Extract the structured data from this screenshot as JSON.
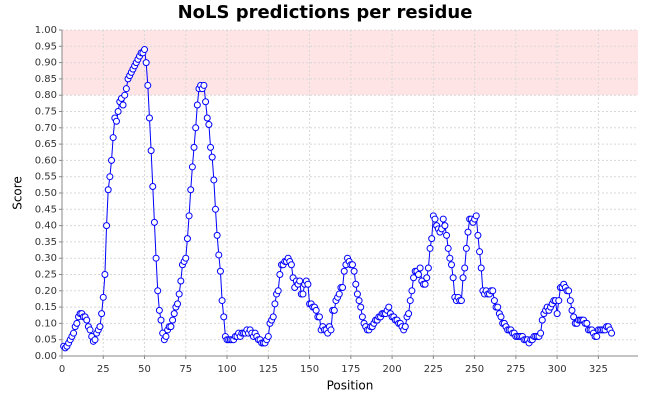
{
  "chart_data": {
    "type": "line",
    "title": "NoLS predictions per residue",
    "x_label": "Position",
    "y_label": "Score",
    "color": "#0000ff",
    "marker_fill": "#ffffff",
    "grid": true,
    "band": {
      "range": [
        0.8,
        1.0
      ],
      "color": "#ffe4e6"
    },
    "xlim": [
      0,
      349
    ],
    "xticks": [
      0,
      25,
      50,
      75,
      100,
      125,
      150,
      175,
      200,
      225,
      250,
      275,
      300,
      325
    ],
    "ylim": [
      0,
      1.0
    ],
    "yticks": [
      {
        "value": 0,
        "label": "0.00"
      },
      {
        "value": 0.05,
        "label": "0.05"
      },
      {
        "value": 0.1,
        "label": "0.10"
      },
      {
        "value": 0.15,
        "label": "0.15"
      },
      {
        "value": 0.2,
        "label": "0.20"
      },
      {
        "value": 0.25,
        "label": "0.25"
      },
      {
        "value": 0.3,
        "label": "0.30"
      },
      {
        "value": 0.35,
        "label": "0.35"
      },
      {
        "value": 0.4,
        "label": "0.40"
      },
      {
        "value": 0.45,
        "label": "0.45"
      },
      {
        "value": 0.5,
        "label": "0.50"
      },
      {
        "value": 0.55,
        "label": "0.55"
      },
      {
        "value": 0.6,
        "label": "0.60"
      },
      {
        "value": 0.65,
        "label": "0.65"
      },
      {
        "value": 0.7,
        "label": "0.70"
      },
      {
        "value": 0.75,
        "label": "0.75"
      },
      {
        "value": 0.8,
        "label": "0.80"
      },
      {
        "value": 0.85,
        "label": "0.85"
      },
      {
        "value": 0.9,
        "label": "0.90"
      },
      {
        "value": 0.95,
        "label": "0.95"
      },
      {
        "value": 1.0,
        "label": "1.00"
      }
    ],
    "x": [
      1,
      2,
      3,
      4,
      5,
      6,
      7,
      8,
      9,
      10,
      11,
      12,
      13,
      14,
      15,
      16,
      17,
      18,
      19,
      20,
      21,
      22,
      23,
      24,
      25,
      26,
      27,
      28,
      29,
      30,
      31,
      32,
      33,
      34,
      35,
      36,
      37,
      38,
      39,
      40,
      41,
      42,
      43,
      44,
      45,
      46,
      47,
      48,
      49,
      50,
      51,
      52,
      53,
      54,
      55,
      56,
      57,
      58,
      59,
      60,
      61,
      62,
      63,
      64,
      65,
      66,
      67,
      68,
      69,
      70,
      71,
      72,
      73,
      74,
      75,
      76,
      77,
      78,
      79,
      80,
      81,
      82,
      83,
      84,
      85,
      86,
      87,
      88,
      89,
      90,
      91,
      92,
      93,
      94,
      95,
      96,
      97,
      98,
      99,
      100,
      101,
      102,
      103,
      104,
      105,
      106,
      107,
      108,
      109,
      110,
      111,
      112,
      113,
      114,
      115,
      116,
      117,
      118,
      119,
      120,
      121,
      122,
      123,
      124,
      125,
      126,
      127,
      128,
      129,
      130,
      131,
      132,
      133,
      134,
      135,
      136,
      137,
      138,
      139,
      140,
      141,
      142,
      143,
      144,
      145,
      146,
      147,
      148,
      149,
      150,
      151,
      152,
      153,
      154,
      155,
      156,
      157,
      158,
      159,
      160,
      161,
      162,
      163,
      164,
      165,
      166,
      167,
      168,
      169,
      170,
      171,
      172,
      173,
      174,
      175,
      176,
      177,
      178,
      179,
      180,
      181,
      182,
      183,
      184,
      185,
      186,
      187,
      188,
      189,
      190,
      191,
      192,
      193,
      194,
      195,
      196,
      197,
      198,
      199,
      200,
      201,
      202,
      203,
      204,
      205,
      206,
      207,
      208,
      209,
      210,
      211,
      212,
      213,
      214,
      215,
      216,
      217,
      218,
      219,
      220,
      221,
      222,
      223,
      224,
      225,
      226,
      227,
      228,
      229,
      230,
      231,
      232,
      233,
      234,
      235,
      236,
      237,
      238,
      239,
      240,
      241,
      242,
      243,
      244,
      245,
      246,
      247,
      248,
      249,
      250,
      251,
      252,
      253,
      254,
      255,
      256,
      257,
      258,
      259,
      260,
      261,
      262,
      263,
      264,
      265,
      266,
      267,
      268,
      269,
      270,
      271,
      272,
      273,
      274,
      275,
      276,
      277,
      278,
      279,
      280,
      281,
      282,
      283,
      284,
      285,
      286,
      287,
      288,
      289,
      290,
      291,
      292,
      293,
      294,
      295,
      296,
      297,
      298,
      299,
      300,
      301,
      302,
      303,
      304,
      305,
      306,
      307,
      308,
      309,
      310,
      311,
      312,
      313,
      314,
      315,
      316,
      317,
      318,
      319,
      320,
      321,
      322,
      323,
      324,
      325,
      326,
      327,
      328,
      329,
      330,
      331,
      332,
      333
    ],
    "values": [
      0.03,
      0.025,
      0.03,
      0.04,
      0.05,
      0.06,
      0.07,
      0.09,
      0.1,
      0.12,
      0.13,
      0.13,
      0.12,
      0.12,
      0.11,
      0.09,
      0.08,
      0.06,
      0.045,
      0.05,
      0.07,
      0.08,
      0.09,
      0.13,
      0.18,
      0.25,
      0.4,
      0.51,
      0.55,
      0.6,
      0.67,
      0.73,
      0.72,
      0.75,
      0.78,
      0.79,
      0.77,
      0.8,
      0.82,
      0.85,
      0.86,
      0.87,
      0.88,
      0.89,
      0.9,
      0.91,
      0.92,
      0.93,
      0.93,
      0.94,
      0.9,
      0.83,
      0.73,
      0.63,
      0.52,
      0.41,
      0.3,
      0.2,
      0.14,
      0.11,
      0.07,
      0.05,
      0.06,
      0.08,
      0.09,
      0.09,
      0.11,
      0.13,
      0.15,
      0.16,
      0.19,
      0.23,
      0.28,
      0.29,
      0.3,
      0.36,
      0.43,
      0.51,
      0.58,
      0.64,
      0.7,
      0.77,
      0.82,
      0.83,
      0.82,
      0.83,
      0.78,
      0.73,
      0.71,
      0.64,
      0.61,
      0.54,
      0.45,
      0.37,
      0.31,
      0.26,
      0.17,
      0.12,
      0.06,
      0.05,
      0.05,
      0.05,
      0.05,
      0.05,
      0.06,
      0.06,
      0.07,
      0.06,
      0.07,
      0.07,
      0.07,
      0.08,
      0.07,
      0.08,
      0.07,
      0.06,
      0.07,
      0.06,
      0.05,
      0.05,
      0.04,
      0.04,
      0.04,
      0.05,
      0.06,
      0.1,
      0.11,
      0.12,
      0.16,
      0.19,
      0.2,
      0.25,
      0.28,
      0.28,
      0.29,
      0.29,
      0.3,
      0.29,
      0.28,
      0.24,
      0.21,
      0.23,
      0.22,
      0.23,
      0.19,
      0.19,
      0.22,
      0.23,
      0.22,
      0.16,
      0.16,
      0.15,
      0.15,
      0.14,
      0.12,
      0.12,
      0.08,
      0.09,
      0.08,
      0.08,
      0.07,
      0.09,
      0.08,
      0.14,
      0.14,
      0.17,
      0.18,
      0.19,
      0.21,
      0.21,
      0.26,
      0.28,
      0.3,
      0.29,
      0.28,
      0.28,
      0.26,
      0.22,
      0.19,
      0.17,
      0.15,
      0.12,
      0.1,
      0.09,
      0.08,
      0.08,
      0.09,
      0.09,
      0.1,
      0.11,
      0.11,
      0.12,
      0.12,
      0.13,
      0.13,
      0.13,
      0.14,
      0.15,
      0.13,
      0.12,
      0.12,
      0.11,
      0.11,
      0.1,
      0.1,
      0.09,
      0.08,
      0.09,
      0.12,
      0.13,
      0.17,
      0.2,
      0.24,
      0.26,
      0.26,
      0.25,
      0.27,
      0.23,
      0.22,
      0.22,
      0.24,
      0.27,
      0.33,
      0.36,
      0.43,
      0.42,
      0.4,
      0.39,
      0.38,
      0.39,
      0.42,
      0.4,
      0.37,
      0.33,
      0.3,
      0.28,
      0.24,
      0.18,
      0.17,
      0.18,
      0.17,
      0.17,
      0.24,
      0.27,
      0.33,
      0.38,
      0.42,
      0.42,
      0.41,
      0.42,
      0.43,
      0.37,
      0.32,
      0.27,
      0.2,
      0.19,
      0.2,
      0.19,
      0.19,
      0.2,
      0.2,
      0.17,
      0.15,
      0.15,
      0.13,
      0.12,
      0.1,
      0.1,
      0.09,
      0.08,
      0.08,
      0.08,
      0.07,
      0.07,
      0.06,
      0.06,
      0.06,
      0.06,
      0.06,
      0.05,
      0.05,
      0.05,
      0.04,
      0.05,
      0.05,
      0.06,
      0.06,
      0.06,
      0.06,
      0.07,
      0.11,
      0.13,
      0.14,
      0.15,
      0.14,
      0.15,
      0.16,
      0.17,
      0.17,
      0.13,
      0.17,
      0.21,
      0.21,
      0.22,
      0.21,
      0.2,
      0.2,
      0.17,
      0.14,
      0.12,
      0.1,
      0.1,
      0.11,
      0.11,
      0.11,
      0.11,
      0.1,
      0.1,
      0.08,
      0.08,
      0.08,
      0.07,
      0.06,
      0.06,
      0.08,
      0.08,
      0.08,
      0.08,
      0.08,
      0.09,
      0.09,
      0.08,
      0.07
    ]
  }
}
